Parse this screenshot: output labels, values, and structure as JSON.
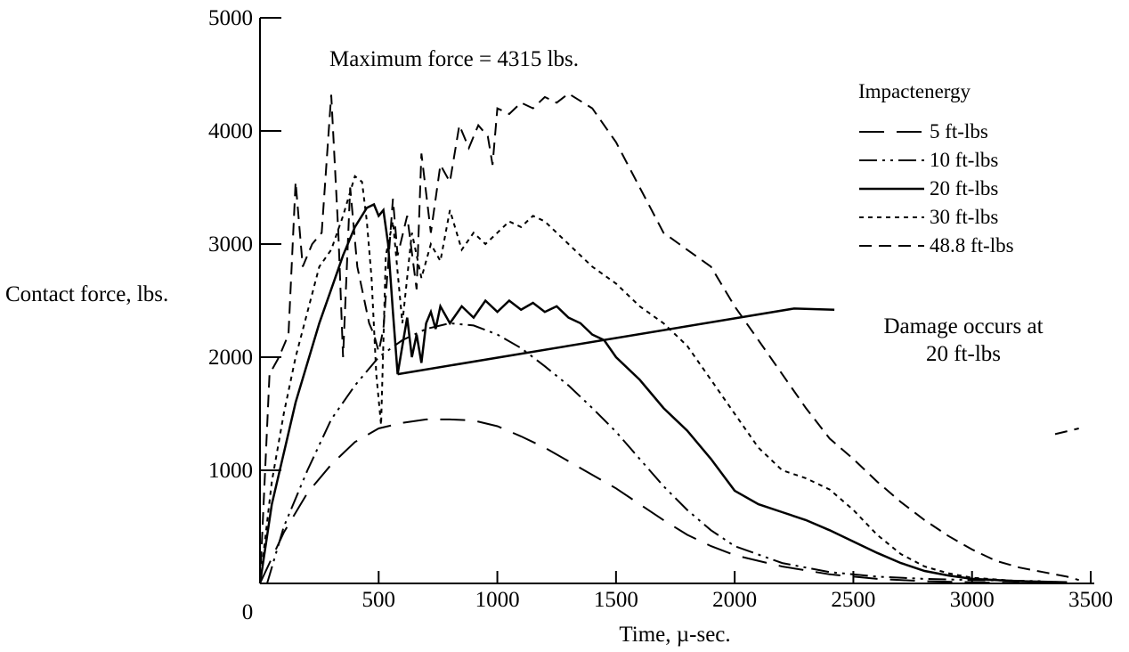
{
  "chart_data": {
    "type": "line",
    "title": "",
    "xlabel": "Time, µ-sec.",
    "ylabel": "Contact force, lbs.",
    "xlim": [
      0,
      3500
    ],
    "ylim": [
      0,
      5000
    ],
    "x_ticks": [
      0,
      500,
      1000,
      1500,
      2000,
      2500,
      3000,
      3500
    ],
    "x_tick_labels": [
      "0",
      "500",
      "1000",
      "1500",
      "2000",
      "2500",
      "3000",
      "3500"
    ],
    "y_ticks": [
      1000,
      2000,
      3000,
      4000,
      5000
    ],
    "y_tick_labels": [
      "1000",
      "2000",
      "3000",
      "4000",
      "5000"
    ],
    "grid": false,
    "legend_title": "Impactenergy",
    "legend_position": "top-right",
    "annotations": {
      "max_force": "Maximum force = 4315 lbs.",
      "damage_line1": "Damage occurs at",
      "damage_line2": "20 ft-lbs",
      "damage_pointer": [
        [
          580,
          1850
        ],
        [
          2250,
          2430
        ],
        [
          2420,
          2420
        ]
      ]
    },
    "series": [
      {
        "name": "5 ft-lbs",
        "dash": "28,14",
        "points": [
          [
            0,
            0
          ],
          [
            100,
            450
          ],
          [
            200,
            800
          ],
          [
            300,
            1050
          ],
          [
            400,
            1250
          ],
          [
            500,
            1370
          ],
          [
            600,
            1420
          ],
          [
            700,
            1450
          ],
          [
            800,
            1450
          ],
          [
            900,
            1440
          ],
          [
            1000,
            1390
          ],
          [
            1100,
            1300
          ],
          [
            1200,
            1200
          ],
          [
            1300,
            1080
          ],
          [
            1400,
            960
          ],
          [
            1500,
            840
          ],
          [
            1600,
            700
          ],
          [
            1700,
            560
          ],
          [
            1800,
            430
          ],
          [
            1900,
            330
          ],
          [
            2000,
            250
          ],
          [
            2200,
            150
          ],
          [
            2400,
            80
          ],
          [
            2600,
            40
          ],
          [
            2800,
            20
          ],
          [
            3000,
            10
          ],
          [
            3200,
            5
          ]
        ]
      },
      {
        "name": "10 ft-lbs",
        "dash": "20,6,3,6,3,6",
        "points": [
          [
            30,
            0
          ],
          [
            100,
            500
          ],
          [
            200,
            1000
          ],
          [
            300,
            1450
          ],
          [
            400,
            1750
          ],
          [
            500,
            2000
          ],
          [
            600,
            2150
          ],
          [
            700,
            2250
          ],
          [
            800,
            2300
          ],
          [
            900,
            2280
          ],
          [
            1000,
            2200
          ],
          [
            1100,
            2080
          ],
          [
            1200,
            1920
          ],
          [
            1300,
            1750
          ],
          [
            1400,
            1550
          ],
          [
            1500,
            1340
          ],
          [
            1600,
            1100
          ],
          [
            1700,
            860
          ],
          [
            1800,
            650
          ],
          [
            1900,
            470
          ],
          [
            2000,
            330
          ],
          [
            2200,
            180
          ],
          [
            2400,
            100
          ],
          [
            2600,
            60
          ],
          [
            2800,
            40
          ],
          [
            3000,
            30
          ],
          [
            3300,
            20
          ]
        ]
      },
      {
        "name": "20 ft-lbs",
        "dash": "",
        "points": [
          [
            0,
            0
          ],
          [
            50,
            700
          ],
          [
            100,
            1150
          ],
          [
            150,
            1600
          ],
          [
            200,
            1950
          ],
          [
            250,
            2300
          ],
          [
            300,
            2600
          ],
          [
            350,
            2900
          ],
          [
            400,
            3150
          ],
          [
            450,
            3320
          ],
          [
            480,
            3350
          ],
          [
            500,
            3250
          ],
          [
            520,
            3300
          ],
          [
            540,
            3000
          ],
          [
            560,
            2400
          ],
          [
            580,
            1850
          ],
          [
            600,
            2100
          ],
          [
            620,
            2350
          ],
          [
            640,
            2000
          ],
          [
            660,
            2200
          ],
          [
            680,
            1950
          ],
          [
            700,
            2300
          ],
          [
            720,
            2400
          ],
          [
            740,
            2250
          ],
          [
            760,
            2450
          ],
          [
            800,
            2300
          ],
          [
            850,
            2450
          ],
          [
            900,
            2350
          ],
          [
            950,
            2500
          ],
          [
            1000,
            2400
          ],
          [
            1050,
            2500
          ],
          [
            1100,
            2420
          ],
          [
            1150,
            2480
          ],
          [
            1200,
            2400
          ],
          [
            1250,
            2450
          ],
          [
            1300,
            2350
          ],
          [
            1350,
            2300
          ],
          [
            1400,
            2200
          ],
          [
            1450,
            2150
          ],
          [
            1500,
            2000
          ],
          [
            1600,
            1800
          ],
          [
            1700,
            1550
          ],
          [
            1800,
            1350
          ],
          [
            1900,
            1100
          ],
          [
            2000,
            820
          ],
          [
            2100,
            700
          ],
          [
            2200,
            630
          ],
          [
            2300,
            560
          ],
          [
            2400,
            470
          ],
          [
            2500,
            370
          ],
          [
            2600,
            270
          ],
          [
            2700,
            180
          ],
          [
            2800,
            110
          ],
          [
            2900,
            70
          ],
          [
            3000,
            40
          ],
          [
            3200,
            20
          ],
          [
            3400,
            10
          ]
        ]
      },
      {
        "name": "30 ft-lbs",
        "dash": "5,5",
        "points": [
          [
            0,
            0
          ],
          [
            50,
            900
          ],
          [
            100,
            1500
          ],
          [
            150,
            2000
          ],
          [
            200,
            2400
          ],
          [
            250,
            2800
          ],
          [
            300,
            2950
          ],
          [
            350,
            3250
          ],
          [
            400,
            3600
          ],
          [
            430,
            3550
          ],
          [
            450,
            3200
          ],
          [
            470,
            2700
          ],
          [
            490,
            1850
          ],
          [
            510,
            1400
          ],
          [
            530,
            2900
          ],
          [
            560,
            3200
          ],
          [
            600,
            2300
          ],
          [
            640,
            3100
          ],
          [
            680,
            2700
          ],
          [
            720,
            3000
          ],
          [
            760,
            2850
          ],
          [
            800,
            3300
          ],
          [
            850,
            2950
          ],
          [
            900,
            3100
          ],
          [
            950,
            3000
          ],
          [
            1000,
            3100
          ],
          [
            1050,
            3200
          ],
          [
            1100,
            3150
          ],
          [
            1150,
            3250
          ],
          [
            1200,
            3200
          ],
          [
            1250,
            3100
          ],
          [
            1300,
            3000
          ],
          [
            1400,
            2800
          ],
          [
            1500,
            2650
          ],
          [
            1600,
            2450
          ],
          [
            1700,
            2300
          ],
          [
            1800,
            2100
          ],
          [
            1900,
            1800
          ],
          [
            2000,
            1500
          ],
          [
            2100,
            1200
          ],
          [
            2200,
            1000
          ],
          [
            2300,
            930
          ],
          [
            2400,
            830
          ],
          [
            2500,
            650
          ],
          [
            2600,
            430
          ],
          [
            2700,
            260
          ],
          [
            2800,
            150
          ],
          [
            2900,
            90
          ],
          [
            3000,
            50
          ],
          [
            3200,
            20
          ],
          [
            3400,
            10
          ]
        ]
      },
      {
        "name": "48.8 ft-lbs",
        "dash": "14,8",
        "points": [
          [
            0,
            0
          ],
          [
            40,
            1850
          ],
          [
            80,
            2000
          ],
          [
            120,
            2200
          ],
          [
            150,
            3550
          ],
          [
            180,
            2800
          ],
          [
            220,
            3000
          ],
          [
            260,
            3100
          ],
          [
            300,
            4320
          ],
          [
            330,
            3100
          ],
          [
            350,
            2000
          ],
          [
            380,
            3500
          ],
          [
            410,
            2800
          ],
          [
            440,
            2500
          ],
          [
            460,
            2300
          ],
          [
            480,
            2200
          ],
          [
            500,
            2050
          ],
          [
            520,
            2250
          ],
          [
            560,
            3400
          ],
          [
            580,
            2900
          ],
          [
            620,
            3250
          ],
          [
            660,
            2600
          ],
          [
            680,
            3800
          ],
          [
            720,
            3100
          ],
          [
            760,
            3700
          ],
          [
            800,
            3550
          ],
          [
            840,
            4050
          ],
          [
            880,
            3850
          ],
          [
            920,
            4050
          ],
          [
            960,
            3950
          ],
          [
            980,
            3700
          ],
          [
            1000,
            4200
          ],
          [
            1050,
            4150
          ],
          [
            1100,
            4250
          ],
          [
            1150,
            4200
          ],
          [
            1200,
            4300
          ],
          [
            1250,
            4250
          ],
          [
            1300,
            4330
          ],
          [
            1400,
            4200
          ],
          [
            1500,
            3900
          ],
          [
            1600,
            3500
          ],
          [
            1700,
            3100
          ],
          [
            1800,
            2950
          ],
          [
            1900,
            2800
          ],
          [
            2000,
            2450
          ],
          [
            2100,
            2150
          ],
          [
            2200,
            1850
          ],
          [
            2300,
            1550
          ],
          [
            2400,
            1280
          ],
          [
            2500,
            1100
          ],
          [
            2600,
            900
          ],
          [
            2700,
            720
          ],
          [
            2800,
            560
          ],
          [
            2900,
            420
          ],
          [
            3000,
            300
          ],
          [
            3100,
            200
          ],
          [
            3200,
            140
          ],
          [
            3300,
            100
          ],
          [
            3400,
            60
          ],
          [
            3450,
            30
          ]
        ]
      }
    ],
    "stray_mark": [
      [
        3350,
        1320
      ],
      [
        3450,
        1370
      ]
    ]
  }
}
